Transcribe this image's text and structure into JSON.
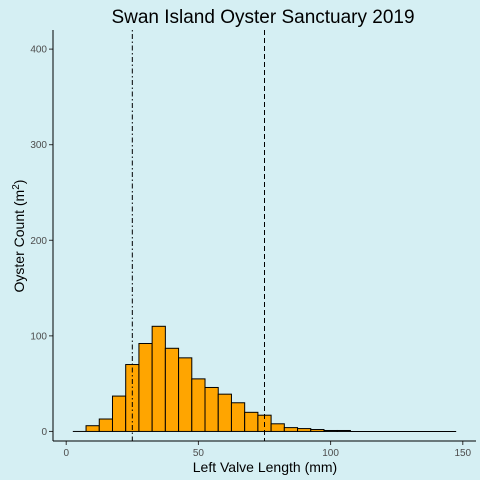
{
  "chart_data": {
    "type": "bar",
    "title": "Swan Island Oyster Sanctuary 2019",
    "xlabel": "Left Valve Length (mm)",
    "ylabel_main": "Oyster Count (m",
    "ylabel_sup": "2",
    "ylabel_close": ")",
    "xlim": [
      -5,
      155
    ],
    "ylim": [
      -10,
      420
    ],
    "x_ticks": [
      0,
      50,
      100,
      150
    ],
    "y_ticks": [
      0,
      100,
      200,
      300,
      400
    ],
    "bin_width": 5,
    "bins": [
      {
        "start": 2.5,
        "end": 7.5,
        "count": 0
      },
      {
        "start": 7.5,
        "end": 12.5,
        "count": 6
      },
      {
        "start": 12.5,
        "end": 17.5,
        "count": 13
      },
      {
        "start": 17.5,
        "end": 22.5,
        "count": 37
      },
      {
        "start": 22.5,
        "end": 27.5,
        "count": 70
      },
      {
        "start": 27.5,
        "end": 32.5,
        "count": 92
      },
      {
        "start": 32.5,
        "end": 37.5,
        "count": 110
      },
      {
        "start": 37.5,
        "end": 42.5,
        "count": 87
      },
      {
        "start": 42.5,
        "end": 47.5,
        "count": 77
      },
      {
        "start": 47.5,
        "end": 52.5,
        "count": 55
      },
      {
        "start": 52.5,
        "end": 57.5,
        "count": 46
      },
      {
        "start": 57.5,
        "end": 62.5,
        "count": 39
      },
      {
        "start": 62.5,
        "end": 67.5,
        "count": 30
      },
      {
        "start": 67.5,
        "end": 72.5,
        "count": 20
      },
      {
        "start": 72.5,
        "end": 77.5,
        "count": 17
      },
      {
        "start": 77.5,
        "end": 82.5,
        "count": 8
      },
      {
        "start": 82.5,
        "end": 87.5,
        "count": 4
      },
      {
        "start": 87.5,
        "end": 92.5,
        "count": 3
      },
      {
        "start": 92.5,
        "end": 97.5,
        "count": 2
      },
      {
        "start": 97.5,
        "end": 102.5,
        "count": 1
      },
      {
        "start": 102.5,
        "end": 107.5,
        "count": 1
      },
      {
        "start": 107.5,
        "end": 147.5,
        "count": 0
      }
    ],
    "vlines": [
      {
        "x": 25,
        "style": "dotdash"
      },
      {
        "x": 75,
        "style": "dashed"
      }
    ],
    "grid": false,
    "colors": {
      "bar_fill": "#ffa500",
      "background": "#d5eff3"
    }
  }
}
